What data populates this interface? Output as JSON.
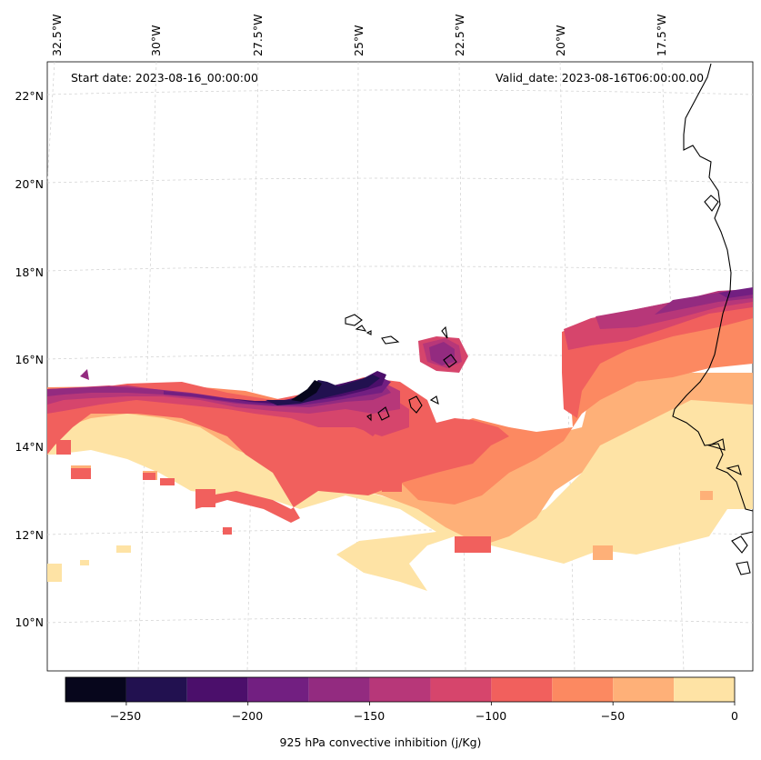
{
  "header": {
    "start_date": "Start date: 2023-08-16_00:00:00",
    "valid_date": "Valid_date: 2023-08-16T06:00:00.00"
  },
  "lon_labels": [
    "32.5°W",
    "30°W",
    "27.5°W",
    "25°W",
    "22.5°W",
    "20°W",
    "17.5°W"
  ],
  "lat_labels": [
    "22°N",
    "20°N",
    "18°N",
    "16°N",
    "14°N",
    "12°N",
    "10°N"
  ],
  "colorbar": {
    "label": "925 hPa convective inhibition (j/Kg)",
    "ticks": [
      "−250",
      "−200",
      "−150",
      "−100",
      "−50",
      "0"
    ],
    "levels": [
      -275,
      -250,
      -225,
      -200,
      -175,
      -150,
      -125,
      -100,
      -75,
      -50,
      -25,
      0
    ],
    "colors": [
      "#07061c",
      "#221150",
      "#4b0f6b",
      "#721f81",
      "#932b80",
      "#b73779",
      "#d6456c",
      "#f1605d",
      "#fc8961",
      "#feb078",
      "#fee3a5"
    ]
  }
}
